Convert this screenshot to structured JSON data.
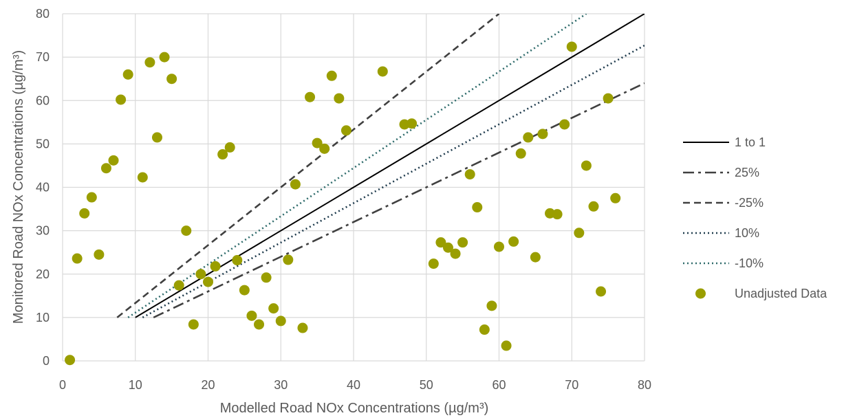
{
  "chart_data": {
    "type": "scatter",
    "title": "",
    "xlabel": "Modelled Road NOx Concentrations (µg/m³)",
    "ylabel": "Monitored Road NOx Concentrations (µg/m³)",
    "xlim": [
      0,
      80
    ],
    "ylim": [
      0,
      80
    ],
    "xticks": [
      0,
      10,
      20,
      30,
      40,
      50,
      60,
      70,
      80
    ],
    "yticks": [
      0,
      10,
      20,
      30,
      40,
      50,
      60,
      70,
      80
    ],
    "grid": true,
    "legend_position": "right",
    "series": [
      {
        "name": "1 to 1",
        "kind": "line",
        "style": "solid",
        "color": "#000000",
        "x": [
          10,
          80
        ],
        "y": [
          10,
          80
        ]
      },
      {
        "name": "25%",
        "kind": "line",
        "style": "dashdot",
        "color": "#404040",
        "x": [
          12.5,
          80
        ],
        "y": [
          10,
          64
        ]
      },
      {
        "name": "-25%",
        "kind": "line",
        "style": "dashed",
        "color": "#404040",
        "x": [
          7.5,
          60
        ],
        "y": [
          10,
          80
        ]
      },
      {
        "name": "10%",
        "kind": "line",
        "style": "dotted",
        "color": "#1f3b4d",
        "x": [
          11,
          80
        ],
        "y": [
          10,
          72.7
        ]
      },
      {
        "name": "-10%",
        "kind": "line",
        "style": "dotted",
        "color": "#2e6b6b",
        "x": [
          9,
          72
        ],
        "y": [
          10,
          80
        ]
      },
      {
        "name": "Unadjusted Data",
        "kind": "scatter",
        "color": "#9a9e00",
        "points": [
          [
            1,
            0.2
          ],
          [
            2,
            23.6
          ],
          [
            3,
            34
          ],
          [
            4,
            37.7
          ],
          [
            5,
            24.5
          ],
          [
            6,
            44.4
          ],
          [
            7,
            46.2
          ],
          [
            8,
            60.2
          ],
          [
            9,
            66
          ],
          [
            11,
            42.3
          ],
          [
            12,
            68.8
          ],
          [
            13,
            51.5
          ],
          [
            14,
            70
          ],
          [
            15,
            65
          ],
          [
            16,
            17.4
          ],
          [
            17,
            30
          ],
          [
            18,
            8.4
          ],
          [
            19,
            20
          ],
          [
            20,
            18.2
          ],
          [
            21,
            21.8
          ],
          [
            22,
            47.6
          ],
          [
            23,
            49.2
          ],
          [
            24,
            23.2
          ],
          [
            25,
            16.3
          ],
          [
            26,
            10.4
          ],
          [
            27,
            8.4
          ],
          [
            28,
            19.2
          ],
          [
            29,
            12.1
          ],
          [
            30,
            9.2
          ],
          [
            31,
            23.3
          ],
          [
            32,
            40.7
          ],
          [
            33,
            7.6
          ],
          [
            34,
            60.8
          ],
          [
            35,
            50.2
          ],
          [
            36,
            48.9
          ],
          [
            37,
            65.7
          ],
          [
            38,
            60.5
          ],
          [
            39,
            53.1
          ],
          [
            44,
            66.7
          ],
          [
            47,
            54.5
          ],
          [
            48,
            54.7
          ],
          [
            51,
            22.4
          ],
          [
            52,
            27.3
          ],
          [
            53,
            26.1
          ],
          [
            54,
            24.7
          ],
          [
            55,
            27.3
          ],
          [
            56,
            43
          ],
          [
            57,
            35.4
          ],
          [
            58,
            7.2
          ],
          [
            59,
            12.7
          ],
          [
            60,
            26.3
          ],
          [
            61,
            3.5
          ],
          [
            62,
            27.5
          ],
          [
            63,
            47.8
          ],
          [
            64,
            51.5
          ],
          [
            65,
            23.9
          ],
          [
            66,
            52.3
          ],
          [
            67,
            34
          ],
          [
            68,
            33.8
          ],
          [
            69,
            54.5
          ],
          [
            70,
            72.4
          ],
          [
            71,
            29.5
          ],
          [
            72,
            45
          ],
          [
            73,
            35.6
          ],
          [
            74,
            16
          ],
          [
            75,
            60.5
          ],
          [
            76,
            37.5
          ]
        ]
      }
    ]
  }
}
